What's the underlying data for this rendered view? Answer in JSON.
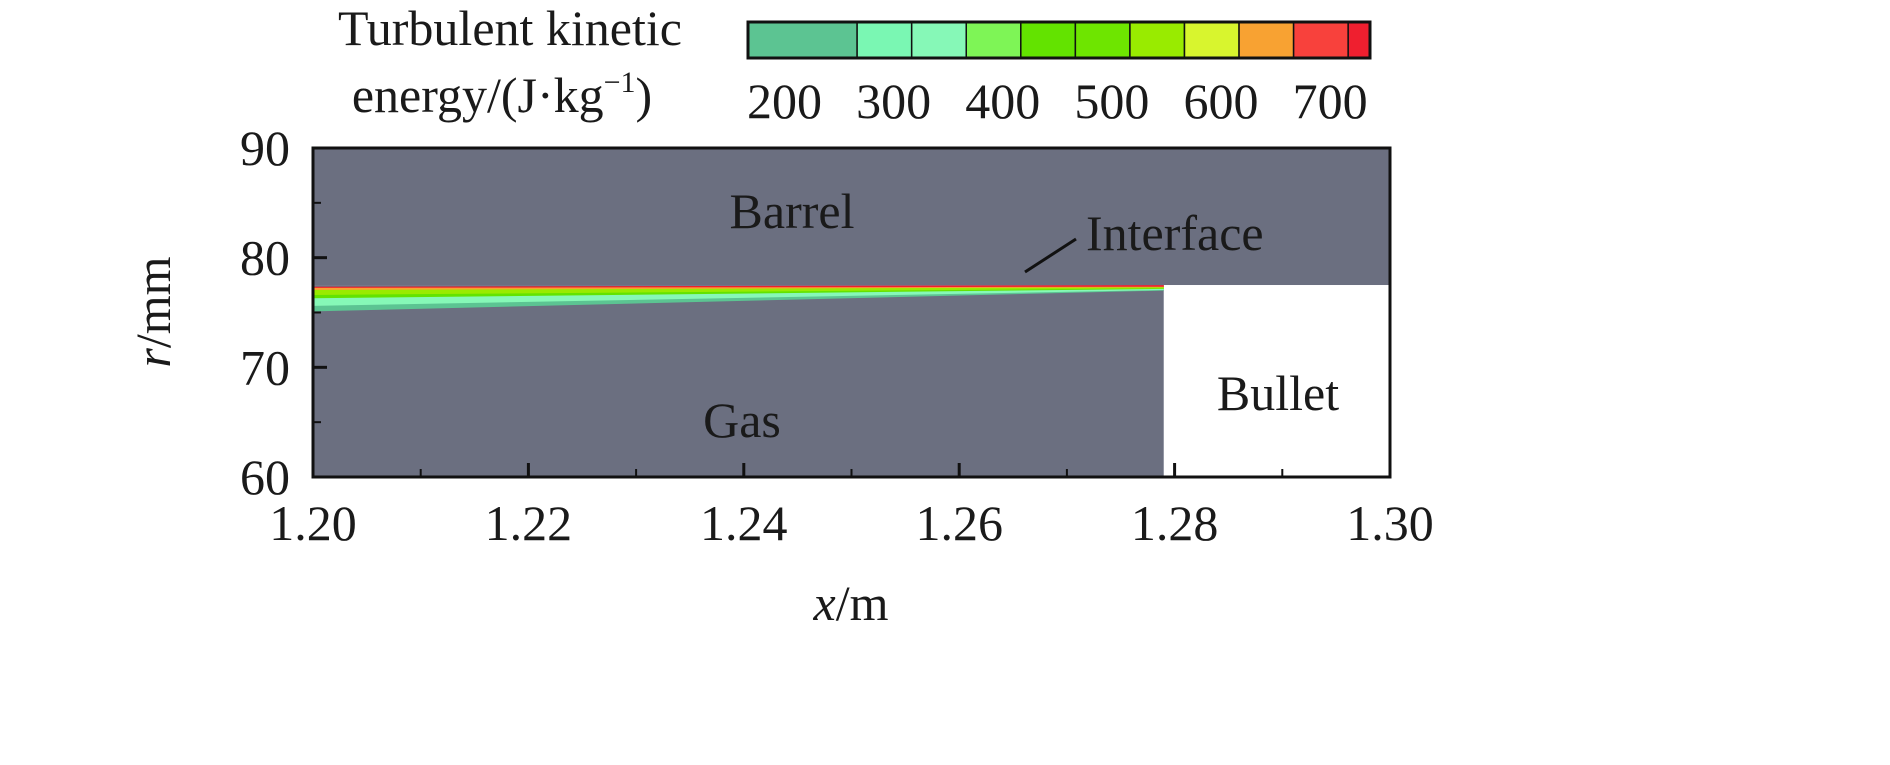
{
  "chart_data": {
    "type": "heatmap",
    "title": "",
    "xlabel": {
      "var": "x",
      "unit": "/m"
    },
    "ylabel": {
      "var": "r",
      "unit": "/mm"
    },
    "xlim": [
      1.2,
      1.3
    ],
    "ylim": [
      60,
      90
    ],
    "x_ticks": [
      "1.20",
      "1.22",
      "1.24",
      "1.26",
      "1.28",
      "1.30"
    ],
    "y_ticks": [
      "60",
      "70",
      "80",
      "90"
    ],
    "colorbar": {
      "label_line1": "Turbulent kinetic",
      "label_line2_text": "energy/(J·kg",
      "label_line2_sup": "−1",
      "label_line2_close": ")",
      "ticks": [
        "200",
        "300",
        "400",
        "500",
        "600",
        "700"
      ],
      "range": [
        150,
        720
      ],
      "levels": [
        150,
        250,
        300,
        350,
        400,
        450,
        500,
        550,
        600,
        650,
        700,
        720
      ],
      "colors": [
        "#5cc492",
        "#7af7b3",
        "#86f8b7",
        "#7ef556",
        "#63e300",
        "#6ee500",
        "#99eb00",
        "#d8f52e",
        "#f8a232",
        "#f8413c",
        "#ef1f2f"
      ]
    },
    "regions": {
      "barrel": {
        "label": "Barrel",
        "r_min": 77.5,
        "r_max": 90,
        "x_min": 1.2,
        "x_max": 1.3,
        "color": "#6b6f80"
      },
      "gas": {
        "label": "Gas",
        "r_min": 60,
        "r_max": 77.5,
        "x_min": 1.2,
        "x_max": 1.279,
        "color": "#6b6f80"
      },
      "bullet": {
        "label": "Bullet",
        "r_min": 60,
        "r_max": 77.5,
        "x_min": 1.279,
        "x_max": 1.3,
        "color": "#ffffff"
      },
      "interface": {
        "label": "Interface",
        "r": 77.5
      }
    },
    "tke_layer": {
      "x_start": 1.2,
      "x_end": 1.279,
      "bands": [
        {
          "level": 200,
          "r_top_start": 76.2,
          "r_top_end": 77.2,
          "r_bot_start": 75.1,
          "r_bot_end": 77.0
        },
        {
          "level": 300,
          "r_top_start": 76.7,
          "r_top_end": 77.25,
          "r_bot_start": 75.6,
          "r_bot_end": 77.05
        },
        {
          "level": 400,
          "r_top_start": 77.0,
          "r_top_end": 77.3,
          "r_bot_start": 76.3,
          "r_bot_end": 77.15
        },
        {
          "level": 500,
          "r_top_start": 77.2,
          "r_top_end": 77.4,
          "r_bot_start": 76.6,
          "r_bot_end": 77.2
        },
        {
          "level": 600,
          "r_top_start": 77.3,
          "r_top_end": 77.45,
          "r_bot_start": 77.05,
          "r_bot_end": 77.3
        },
        {
          "level": 700,
          "r_top_start": 77.35,
          "r_top_end": 77.5,
          "r_bot_start": 77.25,
          "r_bot_end": 77.35
        }
      ]
    }
  }
}
